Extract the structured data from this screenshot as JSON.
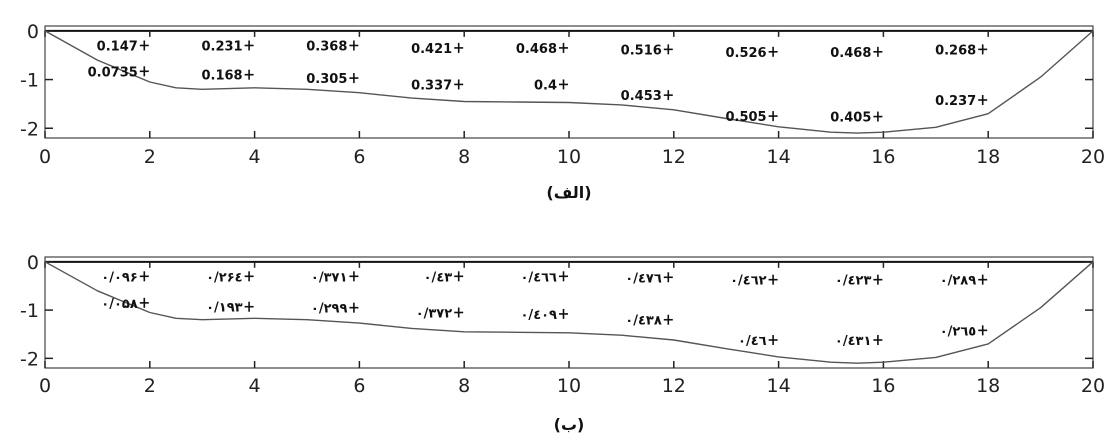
{
  "chart_data": [
    {
      "type": "line",
      "caption": "(الف)",
      "xlim": [
        0,
        20
      ],
      "ylim": [
        -2.2,
        0.1
      ],
      "xticks": [
        "0",
        "2",
        "4",
        "6",
        "8",
        "10",
        "12",
        "14",
        "16",
        "18",
        "20"
      ],
      "yticks": [
        "0",
        "-1",
        "-2"
      ],
      "profile": {
        "x": [
          0,
          1,
          2,
          2.5,
          3,
          4,
          5,
          6,
          7,
          8,
          9,
          10,
          11,
          12,
          13,
          14,
          15,
          15.5,
          16,
          17,
          18,
          19,
          20
        ],
        "y": [
          0,
          -0.6,
          -1.05,
          -1.17,
          -1.2,
          -1.17,
          -1.2,
          -1.27,
          -1.38,
          -1.45,
          -1.46,
          -1.47,
          -1.52,
          -1.62,
          -1.8,
          -1.97,
          -2.08,
          -2.1,
          -2.08,
          -1.98,
          -1.7,
          -0.95,
          0
        ]
      },
      "annotations": [
        {
          "text": "0.147",
          "x": 2,
          "y": -0.3
        },
        {
          "text": "0.231",
          "x": 4,
          "y": -0.3
        },
        {
          "text": "0.368",
          "x": 6,
          "y": -0.3
        },
        {
          "text": "0.421",
          "x": 8,
          "y": -0.35
        },
        {
          "text": "0.468",
          "x": 10,
          "y": -0.35
        },
        {
          "text": "0.516",
          "x": 12,
          "y": -0.38
        },
        {
          "text": "0.526",
          "x": 14,
          "y": -0.43
        },
        {
          "text": "0.468",
          "x": 16,
          "y": -0.43
        },
        {
          "text": "0.268",
          "x": 18,
          "y": -0.38
        },
        {
          "text": "0.0735",
          "x": 2,
          "y": -0.83
        },
        {
          "text": "0.168",
          "x": 4,
          "y": -0.9
        },
        {
          "text": "0.305",
          "x": 6,
          "y": -0.97
        },
        {
          "text": "0.337",
          "x": 8,
          "y": -1.1
        },
        {
          "text": "0.4",
          "x": 10,
          "y": -1.1
        },
        {
          "text": "0.453",
          "x": 12,
          "y": -1.32
        },
        {
          "text": "0.505",
          "x": 14,
          "y": -1.75
        },
        {
          "text": "0.405",
          "x": 16,
          "y": -1.76
        },
        {
          "text": "0.237",
          "x": 18,
          "y": -1.42
        }
      ]
    },
    {
      "type": "line",
      "caption": "(ب)",
      "xlim": [
        0,
        20
      ],
      "ylim": [
        -2.2,
        0.1
      ],
      "xticks": [
        "0",
        "2",
        "4",
        "6",
        "8",
        "10",
        "12",
        "14",
        "16",
        "18",
        "20"
      ],
      "yticks": [
        "0",
        "-1",
        "-2"
      ],
      "profile": {
        "x": [
          0,
          1,
          2,
          2.5,
          3,
          4,
          5,
          6,
          7,
          8,
          9,
          10,
          11,
          12,
          13,
          14,
          15,
          15.5,
          16,
          17,
          18,
          19,
          20
        ],
        "y": [
          0,
          -0.6,
          -1.05,
          -1.17,
          -1.2,
          -1.17,
          -1.2,
          -1.27,
          -1.38,
          -1.45,
          -1.46,
          -1.47,
          -1.52,
          -1.62,
          -1.8,
          -1.97,
          -2.08,
          -2.1,
          -2.08,
          -1.98,
          -1.7,
          -0.95,
          0
        ]
      },
      "annotations": [
        {
          "text": "۰/۰۹۶",
          "x": 2,
          "y": -0.3
        },
        {
          "text": "۰/۲۶٤",
          "x": 4,
          "y": -0.3
        },
        {
          "text": "۰/۳۷۱",
          "x": 6,
          "y": -0.3
        },
        {
          "text": "۰/٤۳",
          "x": 8,
          "y": -0.3
        },
        {
          "text": "۰/٤٦٦",
          "x": 10,
          "y": -0.3
        },
        {
          "text": "۰/٤٧٦",
          "x": 12,
          "y": -0.32
        },
        {
          "text": "۰/٤٦۲",
          "x": 14,
          "y": -0.37
        },
        {
          "text": "۰/٤۲۳",
          "x": 16,
          "y": -0.37
        },
        {
          "text": "۰/۲۸۹",
          "x": 18,
          "y": -0.37
        },
        {
          "text": "۰/۰۵۸",
          "x": 2,
          "y": -0.85
        },
        {
          "text": "۰/۱۹۳",
          "x": 4,
          "y": -0.93
        },
        {
          "text": "۰/۲۹۹",
          "x": 6,
          "y": -0.95
        },
        {
          "text": "۰/۳۷۲",
          "x": 8,
          "y": -1.05
        },
        {
          "text": "۰/٤۰۹",
          "x": 10,
          "y": -1.08
        },
        {
          "text": "۰/٤۳۸",
          "x": 12,
          "y": -1.2
        },
        {
          "text": "۰/٤٦",
          "x": 14,
          "y": -1.62
        },
        {
          "text": "۰/٤۳۱",
          "x": 16,
          "y": -1.62
        },
        {
          "text": "۰/۲٦٥",
          "x": 18,
          "y": -1.42
        }
      ]
    }
  ]
}
